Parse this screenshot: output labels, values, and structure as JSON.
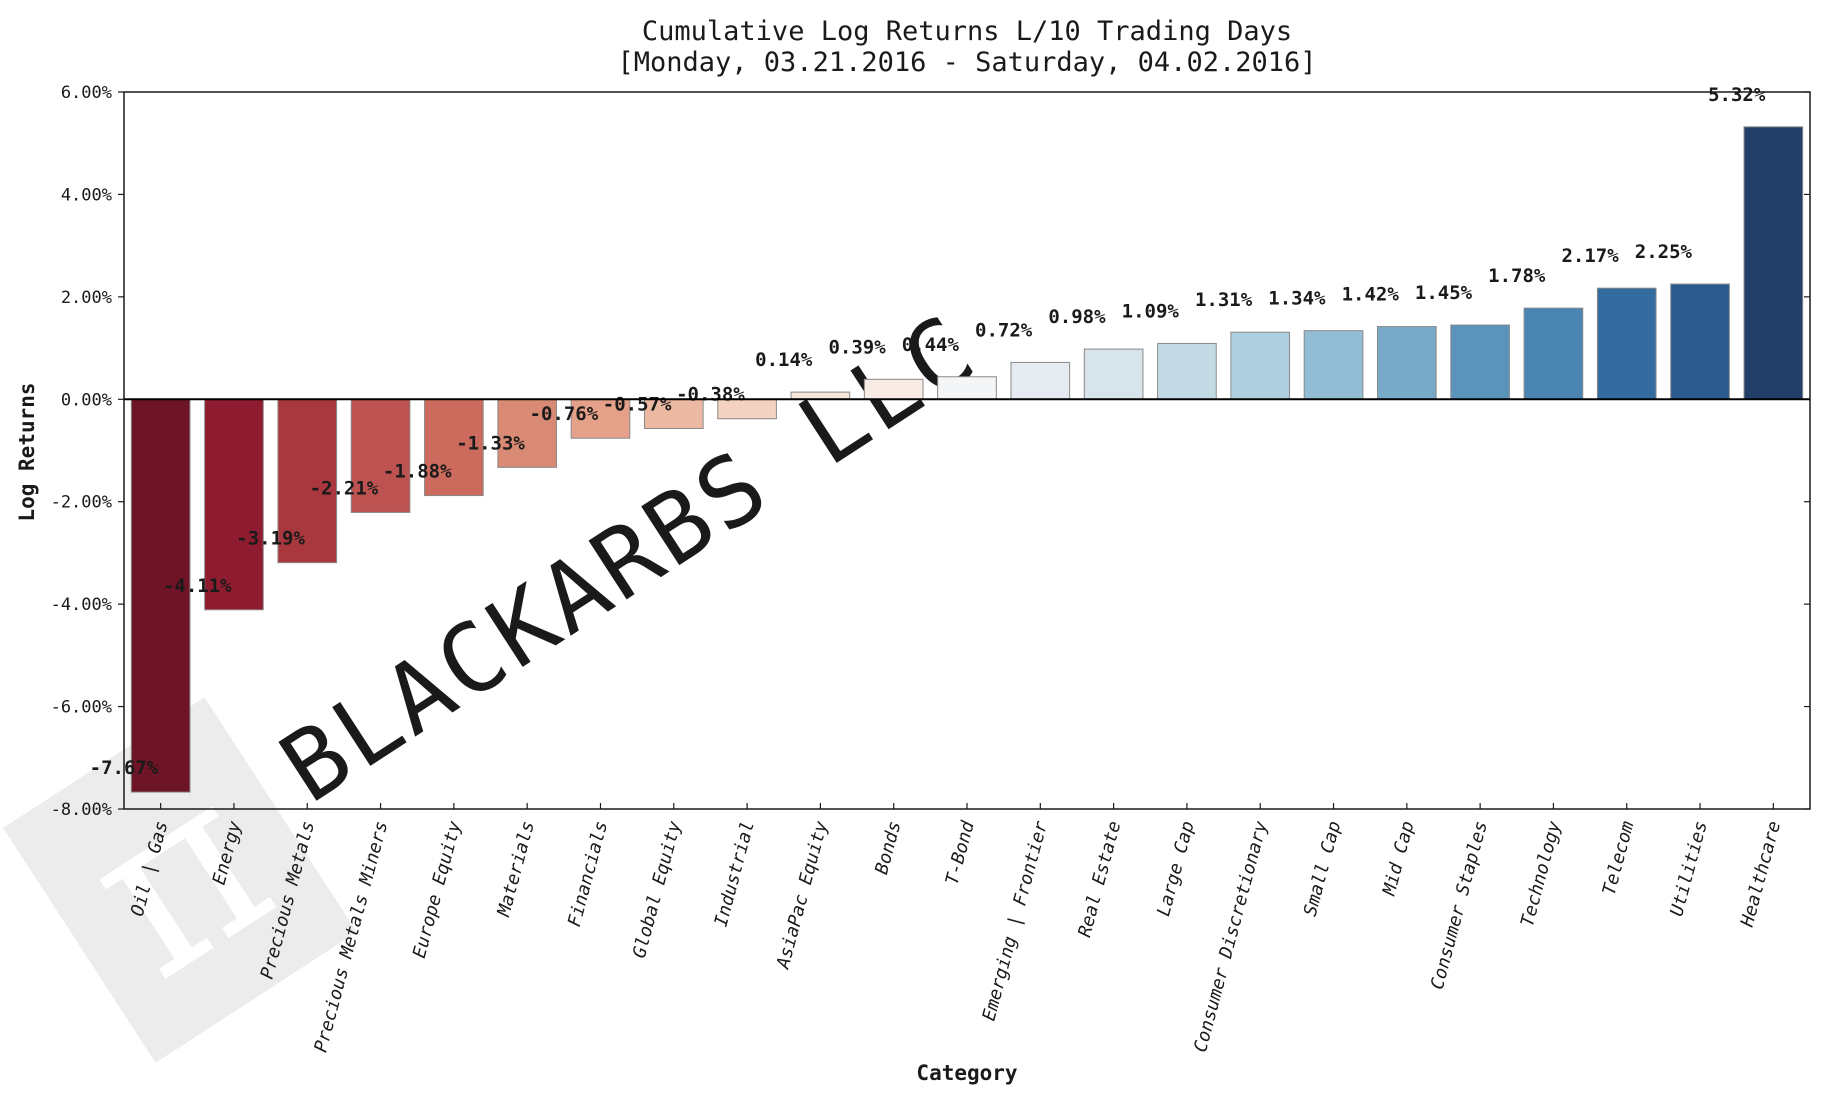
{
  "chart_data": {
    "type": "bar",
    "title": [
      "Cumulative Log Returns L/10 Trading Days",
      "[Monday, 03.21.2016 - Saturday, 04.02.2016]"
    ],
    "xlabel": "Category",
    "ylabel": "Log Returns",
    "ylim": [
      -8,
      6
    ],
    "yticks": [
      6,
      4,
      2,
      0,
      -2,
      -4,
      -6,
      -8
    ],
    "ytick_labels": [
      "6.00%",
      "4.00%",
      "2.00%",
      "0.00%",
      "-2.00%",
      "-4.00%",
      "-6.00%",
      "-8.00%"
    ],
    "grid": false,
    "categories": [
      "Oil | Gas",
      "Energy",
      "Precious Metals",
      "Precious Metals Miners",
      "Europe Equity",
      "Materials",
      "Financials",
      "Global Equity",
      "Industrial",
      "AsiaPac Equity",
      "Bonds",
      "T-Bond",
      "Emerging | Frontier",
      "Real Estate",
      "Large Cap",
      "Consumer Discretionary",
      "Small Cap",
      "Mid Cap",
      "Consumer Staples",
      "Technology",
      "Telecom",
      "Utilities",
      "Healthcare"
    ],
    "values": [
      -7.67,
      -4.11,
      -3.19,
      -2.21,
      -1.88,
      -1.33,
      -0.76,
      -0.57,
      -0.38,
      0.14,
      0.39,
      0.44,
      0.72,
      0.98,
      1.09,
      1.31,
      1.34,
      1.42,
      1.45,
      1.78,
      2.17,
      2.25,
      5.32
    ],
    "value_labels": [
      "-7.67%",
      "-4.11%",
      "-3.19%",
      "-2.21%",
      "-1.88%",
      "-1.33%",
      "-0.76%",
      "-0.57%",
      "-0.38%",
      "0.14%",
      "0.39%",
      "0.44%",
      "0.72%",
      "0.98%",
      "1.09%",
      "1.31%",
      "1.34%",
      "1.42%",
      "1.45%",
      "1.78%",
      "2.17%",
      "2.25%",
      "5.32%"
    ],
    "colors": [
      "#6e1427",
      "#8e1b2f",
      "#a8373e",
      "#bd5350",
      "#cb6a5d",
      "#d98a75",
      "#e4a088",
      "#ecb9a3",
      "#f3d2c1",
      "#f6e7dd",
      "#f8ece4",
      "#f4f5f6",
      "#e5ebf0",
      "#d7e4ec",
      "#c4dbe6",
      "#aecfe0",
      "#93bdd4",
      "#78a9c8",
      "#5b94bb",
      "#4a84b0",
      "#356ca0",
      "#2b5b8f",
      "#213f68"
    ]
  },
  "watermark": {
    "text": "BLACKARBS LLC",
    "logo_glyph": "π",
    "logo_name": "pi-logo-icon"
  }
}
